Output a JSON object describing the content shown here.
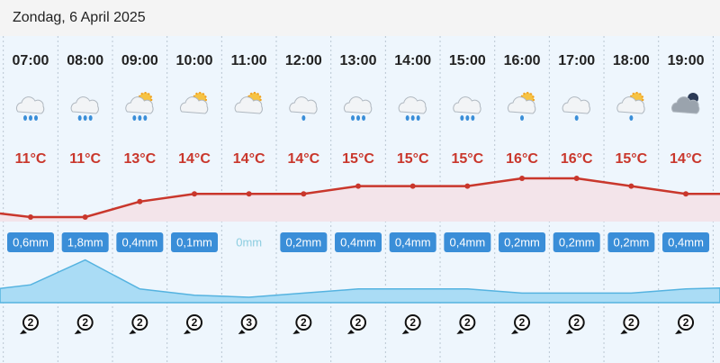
{
  "header": {
    "title": "Zondag, 6 April 2025"
  },
  "hours": [
    {
      "time": "07:00",
      "temp": 11,
      "temp_label": "11°C",
      "precip": 0.6,
      "precip_label": "0,6mm",
      "wind": 2
    },
    {
      "time": "08:00",
      "temp": 11,
      "temp_label": "11°C",
      "precip": 1.8,
      "precip_label": "1,8mm",
      "wind": 2
    },
    {
      "time": "09:00",
      "temp": 13,
      "temp_label": "13°C",
      "precip": 0.4,
      "precip_label": "0,4mm",
      "wind": 2
    },
    {
      "time": "10:00",
      "temp": 14,
      "temp_label": "14°C",
      "precip": 0.1,
      "precip_label": "0,1mm",
      "wind": 2
    },
    {
      "time": "11:00",
      "temp": 14,
      "temp_label": "14°C",
      "precip": 0,
      "precip_label": "0mm",
      "wind": 3
    },
    {
      "time": "12:00",
      "temp": 14,
      "temp_label": "14°C",
      "precip": 0.2,
      "precip_label": "0,2mm",
      "wind": 2
    },
    {
      "time": "13:00",
      "temp": 15,
      "temp_label": "15°C",
      "precip": 0.4,
      "precip_label": "0,4mm",
      "wind": 2
    },
    {
      "time": "14:00",
      "temp": 15,
      "temp_label": "15°C",
      "precip": 0.4,
      "precip_label": "0,4mm",
      "wind": 2
    },
    {
      "time": "15:00",
      "temp": 15,
      "temp_label": "15°C",
      "precip": 0.4,
      "precip_label": "0,4mm",
      "wind": 2
    },
    {
      "time": "16:00",
      "temp": 16,
      "temp_label": "16°C",
      "precip": 0.2,
      "precip_label": "0,2mm",
      "wind": 2
    },
    {
      "time": "17:00",
      "temp": 16,
      "temp_label": "16°C",
      "precip": 0.2,
      "precip_label": "0,2mm",
      "wind": 2
    },
    {
      "time": "18:00",
      "temp": 15,
      "temp_label": "15°C",
      "precip": 0.2,
      "precip_label": "0,2mm",
      "wind": 2
    },
    {
      "time": "19:00",
      "temp": 14,
      "temp_label": "14°C",
      "precip": 0.4,
      "precip_label": "0,4mm",
      "wind": 2
    }
  ]
}
